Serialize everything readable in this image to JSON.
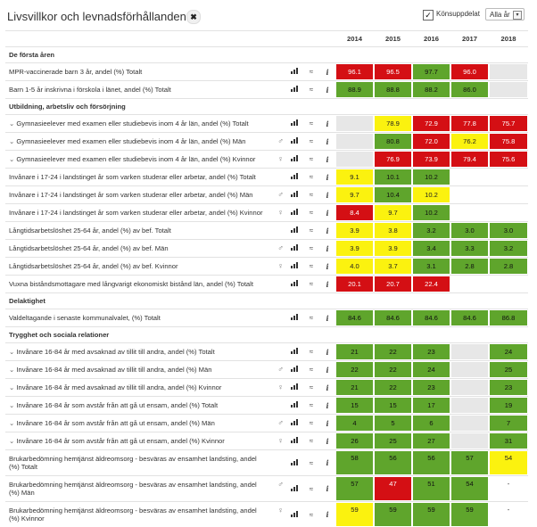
{
  "header": {
    "title": "Livsvillkor och levnadsförhållanden",
    "title_icon": "chart-x",
    "checkbox_label": "Könsuppdelat",
    "year_select": "Alla år"
  },
  "years": [
    "2014",
    "2015",
    "2016",
    "2017",
    "2018"
  ],
  "colors": {
    "red": "#d40f14",
    "yellow": "#fbf20f",
    "green": "#5fa52c",
    "gray": "#e7e7e7"
  },
  "sections": [
    {
      "name": "De första åren",
      "rows": [
        {
          "label": "MPR-vaccinerade barn 3 år, andel (%) Totalt",
          "exp": false,
          "gender": "",
          "cells": [
            [
              "96.1",
              "red"
            ],
            [
              "96.5",
              "red"
            ],
            [
              "97.7",
              "green"
            ],
            [
              "96.0",
              "red"
            ],
            [
              "",
              "gray"
            ]
          ]
        },
        {
          "label": "Barn 1-5 år inskrivna i förskola i länet, andel (%) Totalt",
          "exp": false,
          "gender": "",
          "cells": [
            [
              "88.9",
              "green"
            ],
            [
              "88.8",
              "green"
            ],
            [
              "88.2",
              "green"
            ],
            [
              "86.0",
              "green"
            ],
            [
              "",
              "gray"
            ]
          ]
        }
      ]
    },
    {
      "name": "Utbildning, arbetsliv och försörjning",
      "rows": [
        {
          "label": "Gymnasieelever med examen eller studiebevis inom 4 år län, andel (%) Totalt",
          "exp": true,
          "gender": "",
          "cells": [
            [
              "",
              "gray"
            ],
            [
              "78.9",
              "yellow"
            ],
            [
              "72.9",
              "red"
            ],
            [
              "77.8",
              "red"
            ],
            [
              "75.7",
              "red"
            ]
          ]
        },
        {
          "label": "Gymnasieelever med examen eller studiebevis inom 4 år län, andel (%) Män",
          "exp": true,
          "gender": "♂",
          "cells": [
            [
              "",
              "gray"
            ],
            [
              "80.8",
              "green"
            ],
            [
              "72.0",
              "red"
            ],
            [
              "76.2",
              "yellow"
            ],
            [
              "75.8",
              "red"
            ]
          ]
        },
        {
          "label": "Gymnasieelever med examen eller studiebevis inom 4 år län, andel (%) Kvinnor",
          "exp": true,
          "gender": "♀",
          "cells": [
            [
              "",
              "gray"
            ],
            [
              "76.9",
              "red"
            ],
            [
              "73.9",
              "red"
            ],
            [
              "79.4",
              "red"
            ],
            [
              "75.6",
              "red"
            ]
          ]
        },
        {
          "label": "Invånare i 17-24 i landstinget år som varken studerar eller arbetar, andel (%) Totalt",
          "exp": false,
          "gender": "",
          "cells": [
            [
              "9.1",
              "yellow"
            ],
            [
              "10.1",
              "green"
            ],
            [
              "10.2",
              "green"
            ],
            [
              "",
              "white"
            ],
            [
              "",
              "white"
            ]
          ]
        },
        {
          "label": "Invånare i 17-24 i landstinget år som varken studerar eller arbetar, andel (%) Män",
          "exp": false,
          "gender": "♂",
          "cells": [
            [
              "9.7",
              "yellow"
            ],
            [
              "10.4",
              "green"
            ],
            [
              "10.2",
              "yellow"
            ],
            [
              "",
              "white"
            ],
            [
              "",
              "white"
            ]
          ]
        },
        {
          "label": "Invånare i 17-24 i landstinget år som varken studerar eller arbetar, andel (%) Kvinnor",
          "exp": false,
          "gender": "♀",
          "cells": [
            [
              "8.4",
              "red"
            ],
            [
              "9.7",
              "yellow"
            ],
            [
              "10.2",
              "green"
            ],
            [
              "",
              "white"
            ],
            [
              "",
              "white"
            ]
          ]
        },
        {
          "label": "Långtidsarbetslöshet 25-64 år, andel (%) av bef. Totalt",
          "exp": false,
          "gender": "",
          "cells": [
            [
              "3.9",
              "yellow"
            ],
            [
              "3.8",
              "yellow"
            ],
            [
              "3.2",
              "green"
            ],
            [
              "3.0",
              "green"
            ],
            [
              "3.0",
              "green"
            ]
          ]
        },
        {
          "label": "Långtidsarbetslöshet 25-64 år, andel (%) av bef. Män",
          "exp": false,
          "gender": "♂",
          "cells": [
            [
              "3.9",
              "yellow"
            ],
            [
              "3.9",
              "yellow"
            ],
            [
              "3.4",
              "green"
            ],
            [
              "3.3",
              "green"
            ],
            [
              "3.2",
              "green"
            ]
          ]
        },
        {
          "label": "Långtidsarbetslöshet 25-64 år, andel (%) av bef. Kvinnor",
          "exp": false,
          "gender": "♀",
          "cells": [
            [
              "4.0",
              "yellow"
            ],
            [
              "3.7",
              "yellow"
            ],
            [
              "3.1",
              "green"
            ],
            [
              "2.8",
              "green"
            ],
            [
              "2.8",
              "green"
            ]
          ]
        },
        {
          "label": "Vuxna biståndsmottagare med långvarigt ekonomiskt bistånd län, andel (%) Totalt",
          "exp": false,
          "gender": "",
          "cells": [
            [
              "20.1",
              "red"
            ],
            [
              "20.7",
              "red"
            ],
            [
              "22.4",
              "red"
            ],
            [
              "",
              "white"
            ],
            [
              "",
              "white"
            ]
          ]
        }
      ]
    },
    {
      "name": "Delaktighet",
      "rows": [
        {
          "label": "Valdeltagande i senaste kommunalvalet, (%) Totalt",
          "exp": false,
          "gender": "",
          "cells": [
            [
              "84.6",
              "green"
            ],
            [
              "84.6",
              "green"
            ],
            [
              "84.6",
              "green"
            ],
            [
              "84.6",
              "green"
            ],
            [
              "86.8",
              "green"
            ]
          ]
        }
      ]
    },
    {
      "name": "Trygghet och sociala relationer",
      "rows": [
        {
          "label": "Invånare 16-84 år med avsaknad av tillit till andra, andel (%) Totalt",
          "exp": true,
          "gender": "",
          "cells": [
            [
              "21",
              "green"
            ],
            [
              "22",
              "green"
            ],
            [
              "23",
              "green"
            ],
            [
              "",
              "gray"
            ],
            [
              "24",
              "green"
            ]
          ]
        },
        {
          "label": "Invånare 16-84 år med avsaknad av tillit till andra, andel (%) Män",
          "exp": true,
          "gender": "♂",
          "cells": [
            [
              "22",
              "green"
            ],
            [
              "22",
              "green"
            ],
            [
              "24",
              "green"
            ],
            [
              "",
              "gray"
            ],
            [
              "25",
              "green"
            ]
          ]
        },
        {
          "label": "Invånare 16-84 år med avsaknad av tillit till andra, andel (%) Kvinnor",
          "exp": true,
          "gender": "♀",
          "cells": [
            [
              "21",
              "green"
            ],
            [
              "22",
              "green"
            ],
            [
              "23",
              "green"
            ],
            [
              "",
              "gray"
            ],
            [
              "23",
              "green"
            ]
          ]
        },
        {
          "label": "Invånare 16-84 år som avstår från att gå ut ensam, andel (%) Totalt",
          "exp": true,
          "gender": "",
          "cells": [
            [
              "15",
              "green"
            ],
            [
              "15",
              "green"
            ],
            [
              "17",
              "green"
            ],
            [
              "",
              "gray"
            ],
            [
              "19",
              "green"
            ]
          ]
        },
        {
          "label": "Invånare 16-84 år som avstår från att gå ut ensam, andel (%) Män",
          "exp": true,
          "gender": "♂",
          "cells": [
            [
              "4",
              "green"
            ],
            [
              "5",
              "green"
            ],
            [
              "6",
              "green"
            ],
            [
              "",
              "gray"
            ],
            [
              "7",
              "green"
            ]
          ]
        },
        {
          "label": "Invånare 16-84 år som avstår från att gå ut ensam, andel (%) Kvinnor",
          "exp": true,
          "gender": "♀",
          "cells": [
            [
              "26",
              "green"
            ],
            [
              "25",
              "green"
            ],
            [
              "27",
              "green"
            ],
            [
              "",
              "gray"
            ],
            [
              "31",
              "green"
            ]
          ]
        },
        {
          "label": "Brukarbedömning hemtjänst äldreomsorg - besväras av ensamhet landsting, andel (%) Totalt",
          "exp": false,
          "gender": "",
          "tall": true,
          "cells": [
            [
              "58",
              "green"
            ],
            [
              "56",
              "green"
            ],
            [
              "56",
              "green"
            ],
            [
              "57",
              "green"
            ],
            [
              "54",
              "yellow"
            ]
          ]
        },
        {
          "label": "Brukarbedömning hemtjänst äldreomsorg - besväras av ensamhet landsting, andel (%) Män",
          "exp": false,
          "gender": "♂",
          "tall": true,
          "cells": [
            [
              "57",
              "green"
            ],
            [
              "47",
              "red"
            ],
            [
              "51",
              "green"
            ],
            [
              "54",
              "green"
            ],
            [
              "-",
              "white"
            ]
          ]
        },
        {
          "label": "Brukarbedömning hemtjänst äldreomsorg - besväras av ensamhet landsting, andel (%) Kvinnor",
          "exp": false,
          "gender": "♀",
          "tall": true,
          "cells": [
            [
              "59",
              "yellow"
            ],
            [
              "59",
              "green"
            ],
            [
              "59",
              "green"
            ],
            [
              "59",
              "green"
            ],
            [
              "-",
              "white"
            ]
          ]
        }
      ]
    }
  ]
}
